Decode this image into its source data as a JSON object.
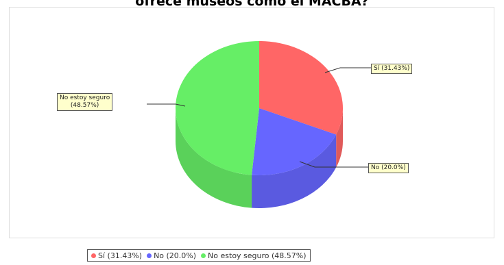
{
  "chart_data": {
    "type": "pie",
    "title": "ofrece museos como el MACBA?",
    "slices": [
      {
        "label": "Sí",
        "value": 31.43,
        "color": "#ff6666",
        "callout": "Sí (31.43%)",
        "legend": "Sí (31.43%)"
      },
      {
        "label": "No",
        "value": 20.0,
        "color": "#6666ff",
        "callout": "No (20.0%)",
        "legend": "No (20.0%)"
      },
      {
        "label": "No estoy seguro",
        "value": 48.57,
        "color": "#66ee66",
        "callout_line1": "No estoy seguro",
        "callout_line2": "(48.57%)",
        "legend": "No estoy seguro (48.57%)"
      }
    ],
    "legend_position": "bottom",
    "style": "3d-pie"
  }
}
